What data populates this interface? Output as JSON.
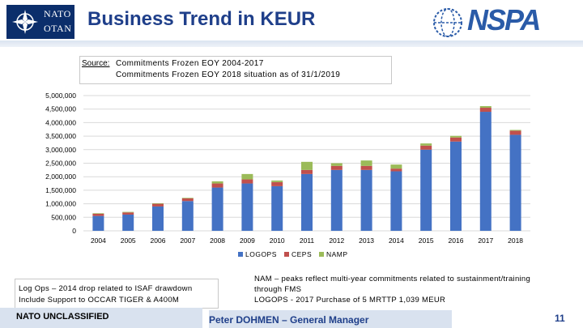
{
  "header": {
    "title": "Business Trend in KEUR",
    "nato_line1": "NATO",
    "nato_line2": "OTAN",
    "nspa_logo": "NSPA"
  },
  "source": {
    "label": "Source:",
    "line1": "Commitments Frozen EOY 2004-2017",
    "line2": "Commitments Frozen EOY 2018 situation as of 31/1/2019"
  },
  "notes": {
    "left_line1": "Log Ops – 2014 drop related to ISAF drawdown",
    "left_line2": "Include Support to OCCAR TIGER & A400M",
    "right_line1": "NAM – peaks reflect multi-year commitments related to sustainment/training",
    "right_line2": "through FMS",
    "right_line3": "LOGOPS  - 2017 Purchase of 5  MRTTP 1,039 MEUR"
  },
  "footer": {
    "classification": "NATO UNCLASSIFIED",
    "author": "Peter DOHMEN – General Manager",
    "page": "11"
  },
  "colors": {
    "logops": "#4472c4",
    "ceps": "#c0504d",
    "namp": "#9bbb59",
    "grid": "#d9d9d9",
    "title": "#1f3f8a"
  },
  "chart_data": {
    "type": "bar",
    "stacked": true,
    "categories": [
      "2004",
      "2005",
      "2006",
      "2007",
      "2008",
      "2009",
      "2010",
      "2011",
      "2012",
      "2013",
      "2014",
      "2015",
      "2016",
      "2017",
      "2018"
    ],
    "series": [
      {
        "name": "LOGOPS",
        "values": [
          550000,
          600000,
          900000,
          1100000,
          1600000,
          1750000,
          1650000,
          2100000,
          2250000,
          2250000,
          2200000,
          3000000,
          3300000,
          4400000,
          3550000
        ]
      },
      {
        "name": "CEPS",
        "values": [
          80000,
          80000,
          100000,
          100000,
          150000,
          150000,
          150000,
          150000,
          150000,
          150000,
          100000,
          150000,
          150000,
          150000,
          150000
        ]
      },
      {
        "name": "NAMP",
        "values": [
          20000,
          20000,
          20000,
          20000,
          80000,
          200000,
          60000,
          300000,
          100000,
          200000,
          150000,
          80000,
          60000,
          60000,
          30000
        ]
      }
    ],
    "y_tick_labels": [
      "0",
      "500,000",
      "1,000,000",
      "1,500,000",
      "2,000,000",
      "2,500,000",
      "3,000,000",
      "3,500,000",
      "4,000,000",
      "4,500,000",
      "5,000,000"
    ],
    "ylim": [
      0,
      5000000
    ],
    "legend": [
      "LOGOPS",
      "CEPS",
      "NAMP"
    ],
    "legend_position": "bottom",
    "grid": true
  }
}
